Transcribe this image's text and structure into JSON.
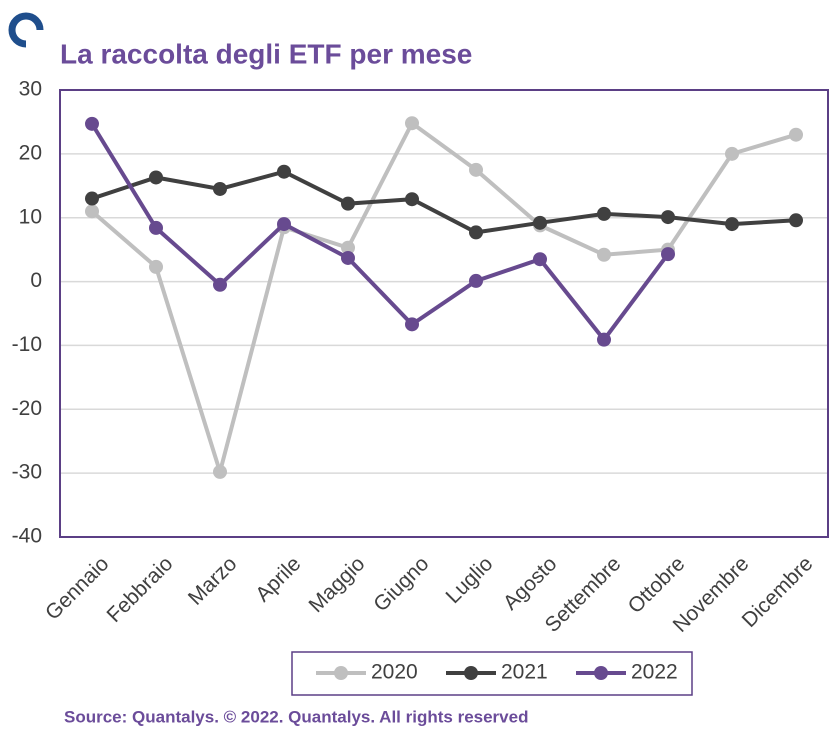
{
  "chart_data": {
    "type": "line",
    "title": "La raccolta degli ETF per mese",
    "source": "Source: Quantalys. © 2022. Quantalys. All rights reserved",
    "categories": [
      "Gennaio",
      "Febbraio",
      "Marzo",
      "Aprile",
      "Maggio",
      "Giugno",
      "Luglio",
      "Agosto",
      "Settembre",
      "Ottobre",
      "Novembre",
      "Dicembre"
    ],
    "series": [
      {
        "name": "2020",
        "color": "#bfbfbf",
        "values": [
          11,
          2.3,
          -29.8,
          8.5,
          5.3,
          24.8,
          17.5,
          8.8,
          4.2,
          5,
          20,
          23
        ]
      },
      {
        "name": "2021",
        "color": "#404040",
        "values": [
          13,
          16.3,
          14.5,
          17.2,
          12.2,
          12.9,
          7.7,
          9.2,
          10.6,
          10.1,
          9,
          9.6
        ]
      },
      {
        "name": "2022",
        "color": "#674a8f",
        "values": [
          24.7,
          8.4,
          -0.5,
          9,
          3.7,
          -6.7,
          0.1,
          3.5,
          -9.1,
          4.3,
          null,
          null
        ]
      }
    ],
    "ylim": [
      -40,
      30
    ],
    "yticks": [
      -40,
      -30,
      -20,
      -10,
      0,
      10,
      20,
      30
    ],
    "grid": true,
    "legend": "bottom"
  }
}
